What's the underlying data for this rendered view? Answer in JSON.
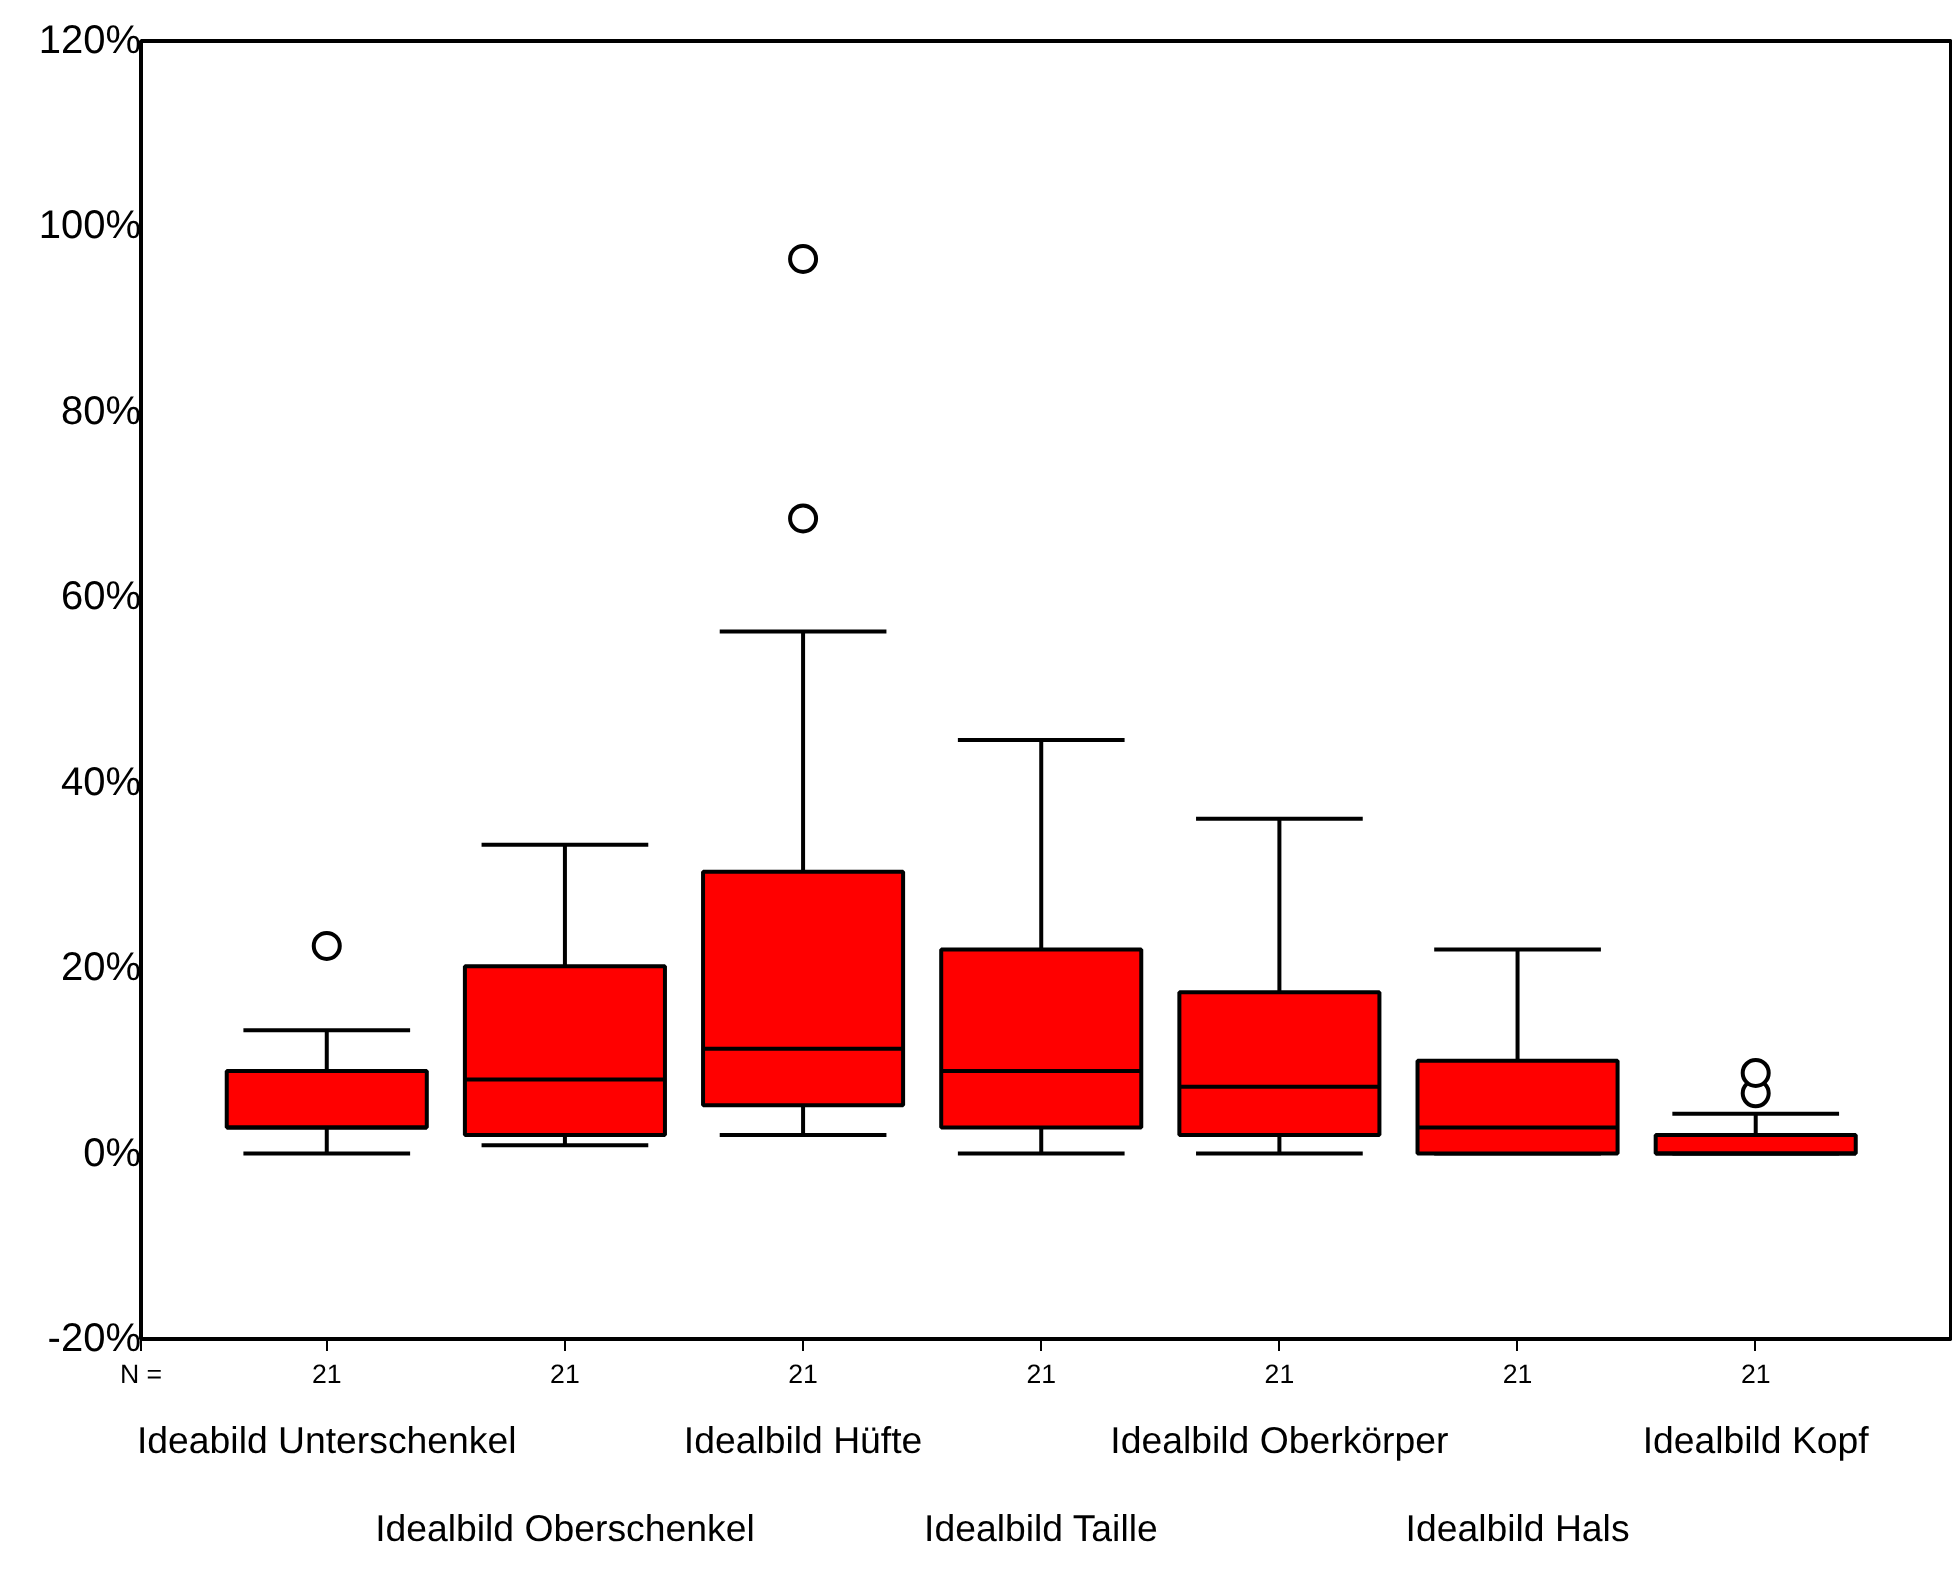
{
  "chart_data": {
    "type": "box",
    "categories": [
      "Ideabild Unterschenkel",
      "Idealbild Oberschenkel",
      "Idealbild Hüfte",
      "Idealbild Taille",
      "Idealbild Oberkörper",
      "Idealbild Hals",
      "Idealbild Kopf"
    ],
    "boxes": [
      {
        "low": 0,
        "q1": 2.8,
        "median": 2.8,
        "q3": 8.9,
        "high": 13.3,
        "outliers": [
          22.4
        ]
      },
      {
        "low": 0.9,
        "q1": 2.0,
        "median": 8.0,
        "q3": 20.2,
        "high": 33.3
      },
      {
        "low": 2.0,
        "q1": 5.2,
        "median": 11.3,
        "q3": 30.4,
        "high": 56.3,
        "outliers": [
          68.5,
          96.5
        ]
      },
      {
        "low": 0,
        "q1": 2.8,
        "median": 8.9,
        "q3": 22.0,
        "high": 44.6
      },
      {
        "low": 0,
        "q1": 2.0,
        "median": 7.2,
        "q3": 17.4,
        "high": 36.1
      },
      {
        "low": 0,
        "q1": 0,
        "median": 2.8,
        "q3": 10.0,
        "high": 22.0
      },
      {
        "low": 0,
        "q1": 0,
        "median": 0,
        "q3": 2.0,
        "high": 4.3,
        "outliers": [
          6.5,
          8.7
        ]
      }
    ],
    "color": "#ff0000",
    "ylim": [
      -20,
      120
    ],
    "yticks": [
      {
        "value": -20,
        "label": "-20%"
      },
      {
        "value": 0,
        "label": "0%"
      },
      {
        "value": 20,
        "label": "20%"
      },
      {
        "value": 40,
        "label": "40%"
      },
      {
        "value": 60,
        "label": "60%"
      },
      {
        "value": 80,
        "label": "80%"
      },
      {
        "value": 100,
        "label": "100%"
      },
      {
        "value": 120,
        "label": "120%"
      }
    ],
    "annotations": [
      "N =",
      "21",
      "21",
      "21",
      "21",
      "21",
      "21",
      "21"
    ],
    "grid": false
  }
}
